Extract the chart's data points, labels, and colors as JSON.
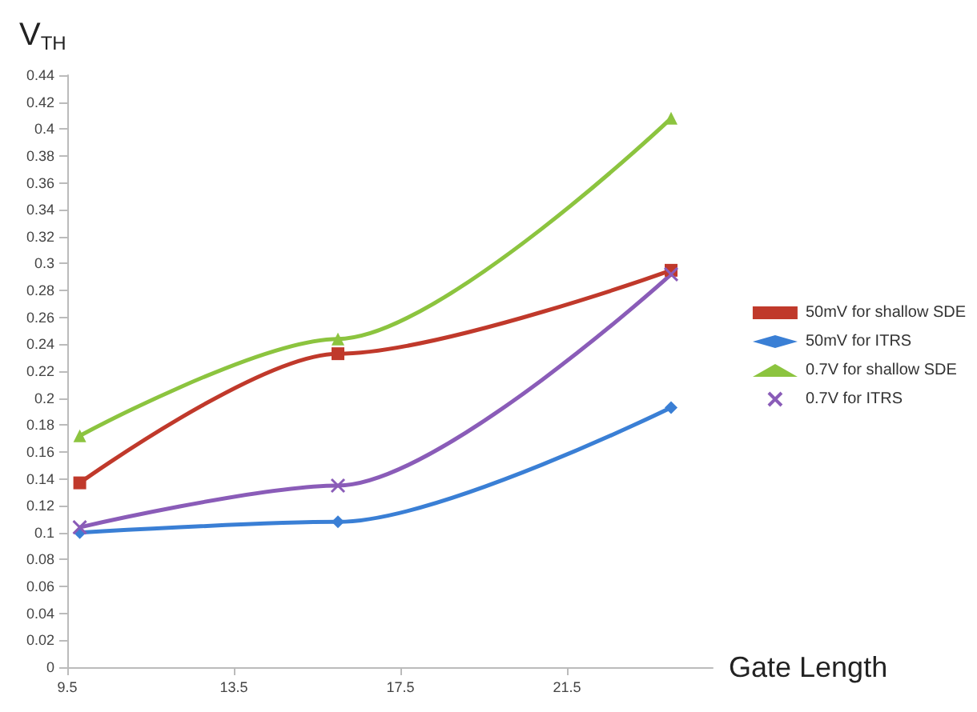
{
  "chart_data": {
    "type": "line",
    "xlabel": "Gate Length",
    "ylabel": "V$_{TH}$",
    "x": [
      9.8,
      16,
      24
    ],
    "series": [
      {
        "name": "50mV for shallow SDE",
        "color": "#c0392b",
        "marker": "square",
        "values": [
          0.137,
          0.233,
          0.295
        ]
      },
      {
        "name": "50mV for ITRS",
        "color": "#3a7fd5",
        "marker": "diamond",
        "values": [
          0.1,
          0.108,
          0.193
        ]
      },
      {
        "name": "0.7V for shallow SDE",
        "color": "#8cc43f",
        "marker": "triangle",
        "values": [
          0.172,
          0.244,
          0.408
        ]
      },
      {
        "name": "0.7V for ITRS",
        "color": "#8a5cb8",
        "marker": "cross",
        "values": [
          0.104,
          0.135,
          0.292
        ]
      }
    ],
    "xlim": [
      9.5,
      25
    ],
    "xticks": [
      9.5,
      13.5,
      17.5,
      21.5
    ],
    "ylim": [
      0,
      0.44
    ],
    "yticks": [
      0,
      0.02,
      0.04,
      0.06,
      0.08,
      0.1,
      0.12,
      0.14,
      0.16,
      0.18,
      0.2,
      0.22,
      0.24,
      0.26,
      0.28,
      0.3,
      0.32,
      0.34,
      0.36,
      0.38,
      0.4,
      0.42,
      0.44
    ],
    "grid": false,
    "legend": "right",
    "line_style": "solid"
  }
}
